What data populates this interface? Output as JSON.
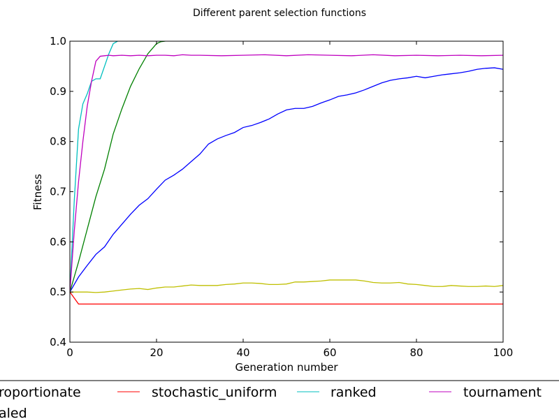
{
  "chart_data": {
    "type": "line",
    "title": "Different parent selection functions",
    "xlabel": "Generation number",
    "ylabel": "Fitness",
    "xlim": [
      0,
      100
    ],
    "ylim": [
      0.4,
      1.0
    ],
    "x_ticks": [
      0,
      20,
      40,
      60,
      80,
      100
    ],
    "y_ticks": [
      0.4,
      0.5,
      0.6,
      0.7,
      0.8,
      0.9,
      1.0
    ],
    "x_tick_labels": [
      "0",
      "20",
      "40",
      "60",
      "80",
      "100"
    ],
    "y_tick_labels": [
      "0.4",
      "0.5",
      "0.6",
      "0.7",
      "0.8",
      "0.9",
      "1.0"
    ],
    "grid": false,
    "legend_position": "bottom, outside plot, clipped",
    "legend_labels": [
      "roportionate",
      "stochastic_uniform",
      "ranked",
      "tournament",
      "aled"
    ],
    "series": [
      {
        "color": "#0000ff",
        "x": [
          0,
          2,
          4,
          6,
          8,
          10,
          12,
          14,
          16,
          18,
          20,
          22,
          24,
          26,
          28,
          30,
          32,
          34,
          36,
          38,
          40,
          42,
          44,
          46,
          48,
          50,
          52,
          54,
          56,
          58,
          60,
          62,
          64,
          66,
          68,
          70,
          72,
          74,
          76,
          78,
          80,
          82,
          84,
          86,
          88,
          90,
          92,
          94,
          96,
          98,
          100
        ],
        "y": [
          0.5,
          0.53,
          0.553,
          0.575,
          0.59,
          0.615,
          0.635,
          0.655,
          0.673,
          0.686,
          0.705,
          0.723,
          0.733,
          0.745,
          0.76,
          0.775,
          0.795,
          0.805,
          0.812,
          0.818,
          0.828,
          0.832,
          0.838,
          0.845,
          0.855,
          0.863,
          0.866,
          0.866,
          0.87,
          0.877,
          0.883,
          0.89,
          0.893,
          0.897,
          0.903,
          0.91,
          0.917,
          0.922,
          0.925,
          0.927,
          0.93,
          0.927,
          0.93,
          0.933,
          0.935,
          0.937,
          0.94,
          0.944,
          0.946,
          0.947,
          0.944
        ]
      },
      {
        "color": "#008000",
        "x": [
          0,
          2,
          4,
          6,
          8,
          10,
          12,
          14,
          16,
          18,
          20,
          21,
          22
        ],
        "y": [
          0.5,
          0.56,
          0.625,
          0.69,
          0.745,
          0.815,
          0.865,
          0.91,
          0.945,
          0.975,
          0.995,
          0.999,
          1.0
        ]
      },
      {
        "color": "#ff0000",
        "x": [
          0,
          2,
          4,
          10,
          20,
          30,
          40,
          50,
          60,
          70,
          80,
          90,
          100
        ],
        "y": [
          0.5,
          0.476,
          0.476,
          0.476,
          0.476,
          0.476,
          0.476,
          0.476,
          0.476,
          0.476,
          0.476,
          0.476,
          0.476
        ]
      },
      {
        "color": "#00bfbf",
        "x": [
          0,
          1,
          2,
          3,
          4,
          5,
          6,
          7,
          8,
          9,
          10,
          11
        ],
        "y": [
          0.5,
          0.68,
          0.825,
          0.875,
          0.895,
          0.92,
          0.925,
          0.925,
          0.95,
          0.975,
          0.995,
          1.0
        ]
      },
      {
        "color": "#bf00bf",
        "x": [
          0,
          1,
          2,
          3,
          4,
          5,
          6,
          7,
          8,
          9,
          10,
          12,
          14,
          16,
          18,
          20,
          22,
          24,
          26,
          28,
          30,
          35,
          40,
          45,
          50,
          55,
          60,
          65,
          70,
          75,
          80,
          85,
          90,
          95,
          100
        ],
        "y": [
          0.5,
          0.62,
          0.72,
          0.8,
          0.87,
          0.92,
          0.96,
          0.97,
          0.971,
          0.972,
          0.971,
          0.972,
          0.971,
          0.972,
          0.971,
          0.972,
          0.972,
          0.971,
          0.973,
          0.972,
          0.972,
          0.971,
          0.972,
          0.973,
          0.971,
          0.973,
          0.972,
          0.971,
          0.973,
          0.971,
          0.972,
          0.971,
          0.972,
          0.971,
          0.972
        ]
      },
      {
        "color": "#bfbf00",
        "x": [
          0,
          2,
          4,
          6,
          8,
          10,
          12,
          14,
          16,
          18,
          20,
          22,
          24,
          26,
          28,
          30,
          32,
          34,
          36,
          38,
          40,
          42,
          44,
          46,
          48,
          50,
          52,
          54,
          56,
          58,
          60,
          62,
          64,
          66,
          68,
          70,
          72,
          74,
          76,
          78,
          80,
          82,
          84,
          86,
          88,
          90,
          92,
          94,
          96,
          98,
          100
        ],
        "y": [
          0.5,
          0.5,
          0.5,
          0.499,
          0.5,
          0.502,
          0.504,
          0.506,
          0.507,
          0.505,
          0.508,
          0.51,
          0.51,
          0.512,
          0.514,
          0.513,
          0.513,
          0.513,
          0.515,
          0.516,
          0.518,
          0.518,
          0.517,
          0.515,
          0.515,
          0.516,
          0.52,
          0.52,
          0.521,
          0.522,
          0.524,
          0.524,
          0.524,
          0.524,
          0.522,
          0.519,
          0.518,
          0.518,
          0.519,
          0.516,
          0.515,
          0.513,
          0.511,
          0.511,
          0.513,
          0.512,
          0.511,
          0.511,
          0.512,
          0.511,
          0.513
        ]
      }
    ]
  }
}
